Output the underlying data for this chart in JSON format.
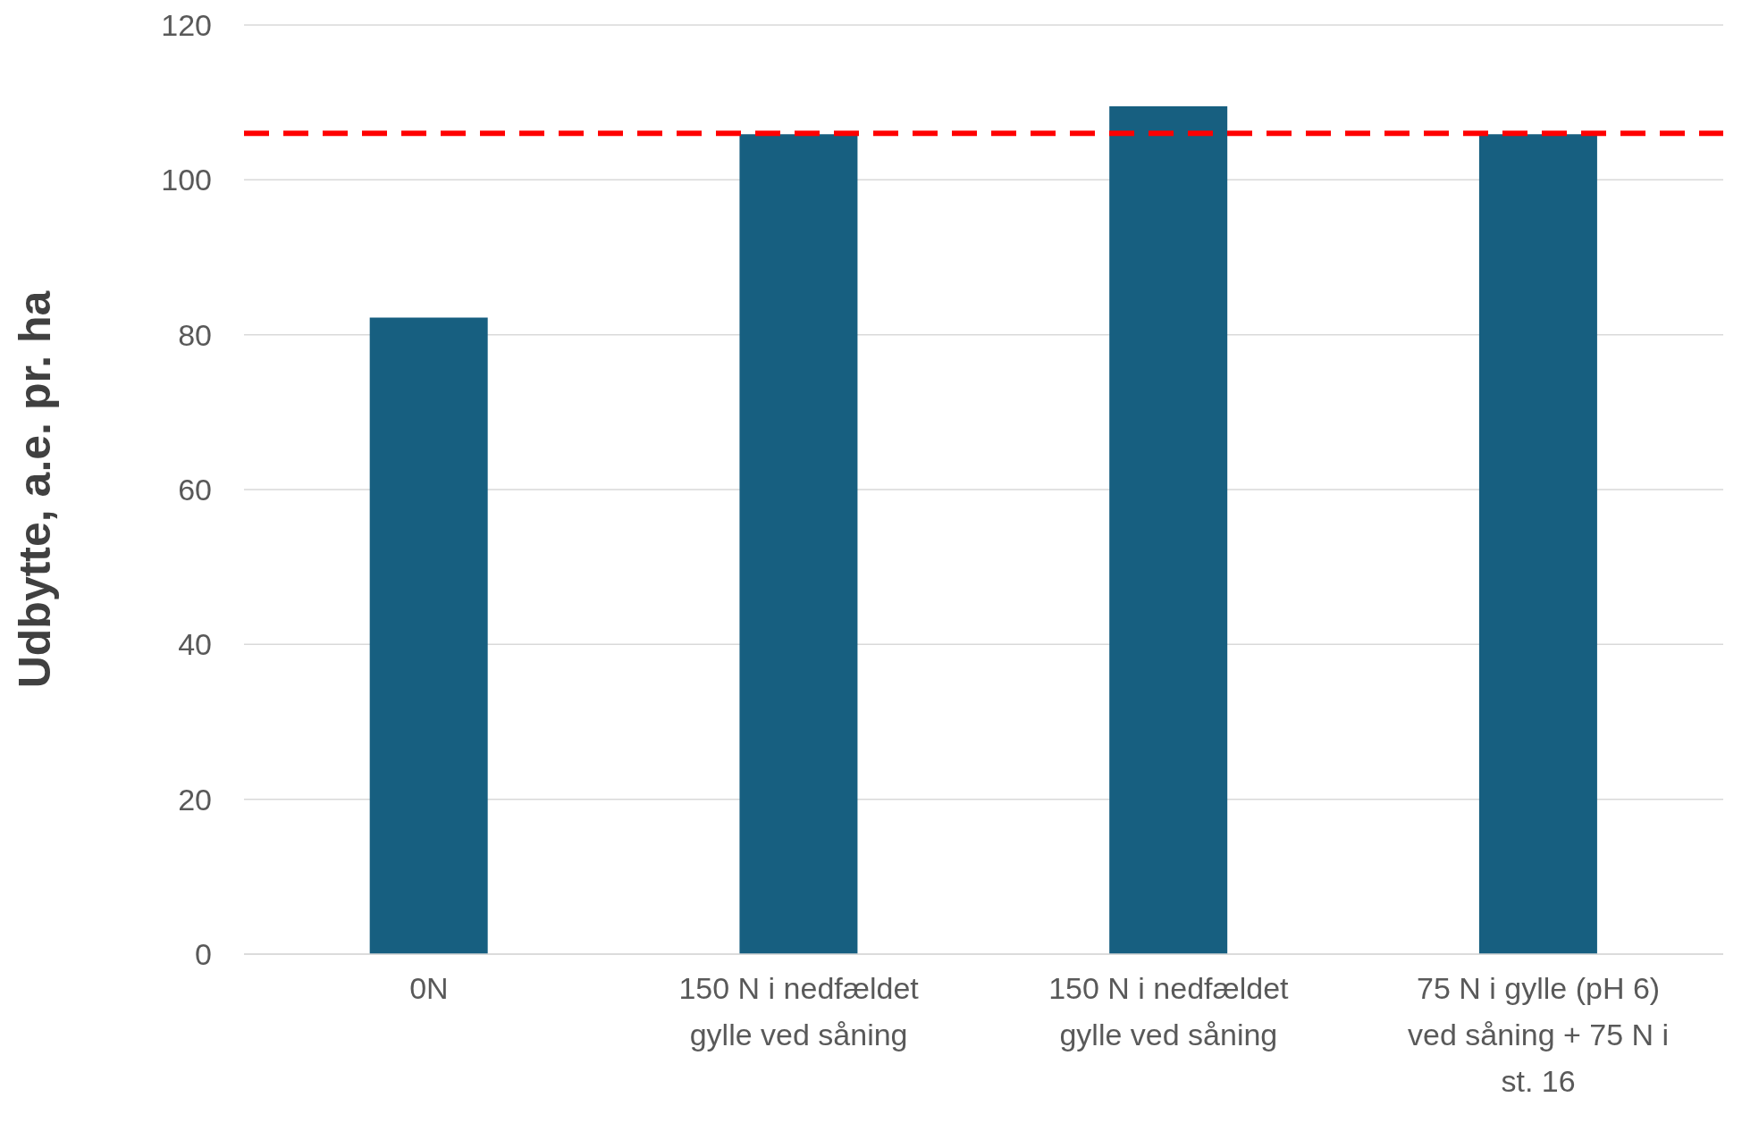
{
  "chart_data": {
    "type": "bar",
    "ylabel": "Udbytte, a.e. pr. ha",
    "categories": [
      "0N",
      "150 N i nedfældet gylle ved såning",
      "150 N i nedfældet gylle ved såning",
      "75 N i gylle (pH 6) ved såning + 75 N i st. 16"
    ],
    "values": [
      82.2,
      105.9,
      109.5,
      105.9
    ],
    "color": "#175f80",
    "ylim": [
      0,
      120
    ],
    "yticks": [
      0,
      20,
      40,
      60,
      80,
      100,
      120
    ],
    "grid": "y",
    "ref_lines": [
      {
        "axis": "y",
        "value": 106,
        "color": "#ff0000",
        "line_style": "dashed"
      }
    ]
  }
}
